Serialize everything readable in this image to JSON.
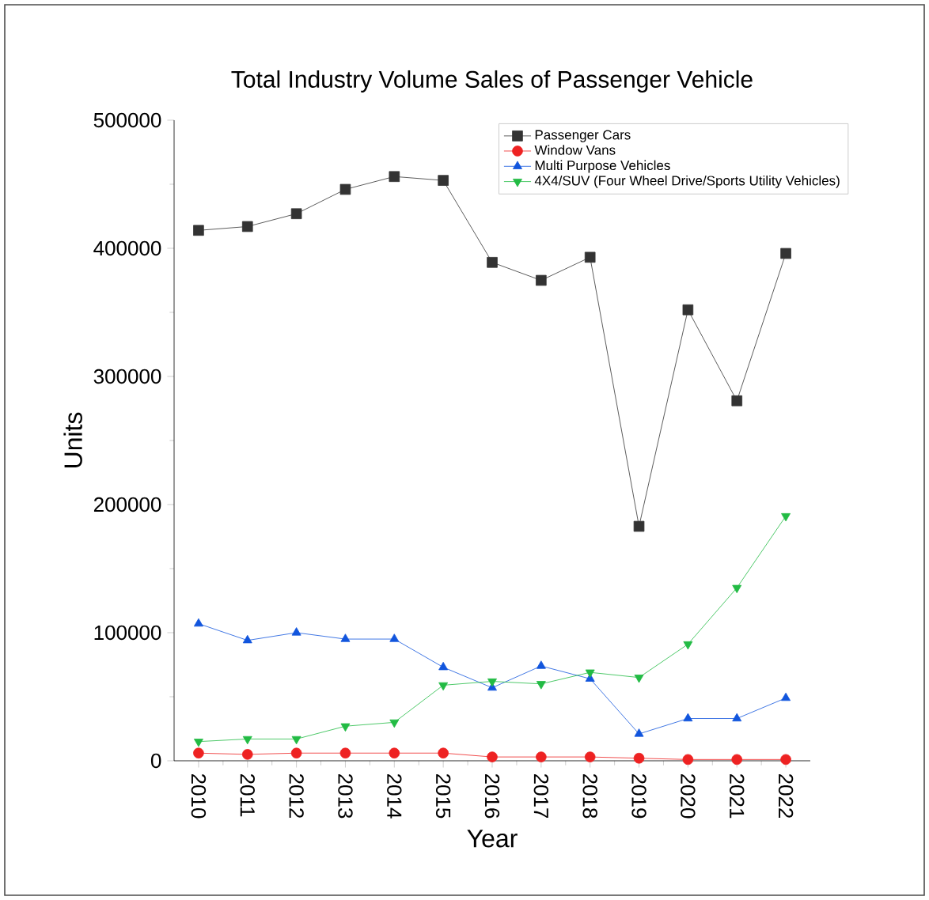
{
  "chart_data": {
    "type": "line",
    "title": "Total Industry Volume Sales of Passenger Vehicle",
    "xlabel": "Year",
    "ylabel": "Units",
    "categories": [
      "2010",
      "2011",
      "2012",
      "2013",
      "2014",
      "2015",
      "2016",
      "2017",
      "2018",
      "2019",
      "2020",
      "2021",
      "2022"
    ],
    "series": [
      {
        "name": "Passenger Cars",
        "color": "#333333",
        "marker": "square",
        "values": [
          414000,
          417000,
          427000,
          446000,
          456000,
          453000,
          389000,
          375000,
          393000,
          183000,
          352000,
          281000,
          396000
        ]
      },
      {
        "name": "Window Vans",
        "color": "#ee2222",
        "marker": "circle",
        "values": [
          6000,
          5000,
          6000,
          6000,
          6000,
          6000,
          3000,
          3000,
          3000,
          2000,
          1000,
          1000,
          1000
        ]
      },
      {
        "name": "Multi Purpose Vehicles",
        "color": "#1155dd",
        "marker": "triangle",
        "values": [
          107000,
          94000,
          100000,
          95000,
          95000,
          73000,
          57000,
          74000,
          64000,
          21000,
          33000,
          33000,
          49000
        ]
      },
      {
        "name": "4X4/SUV (Four Wheel Drive/Sports Utility Vehicles)",
        "color": "#22bb44",
        "marker": "triangle down",
        "values": [
          15000,
          17000,
          17000,
          27000,
          30000,
          59000,
          62000,
          60000,
          69000,
          65000,
          91000,
          135000,
          191000
        ]
      }
    ],
    "ylim": [
      0,
      500000
    ],
    "yticks": [
      0,
      100000,
      200000,
      300000,
      400000,
      500000
    ],
    "grid": false,
    "legend": "top right",
    "line_style": "solid"
  }
}
